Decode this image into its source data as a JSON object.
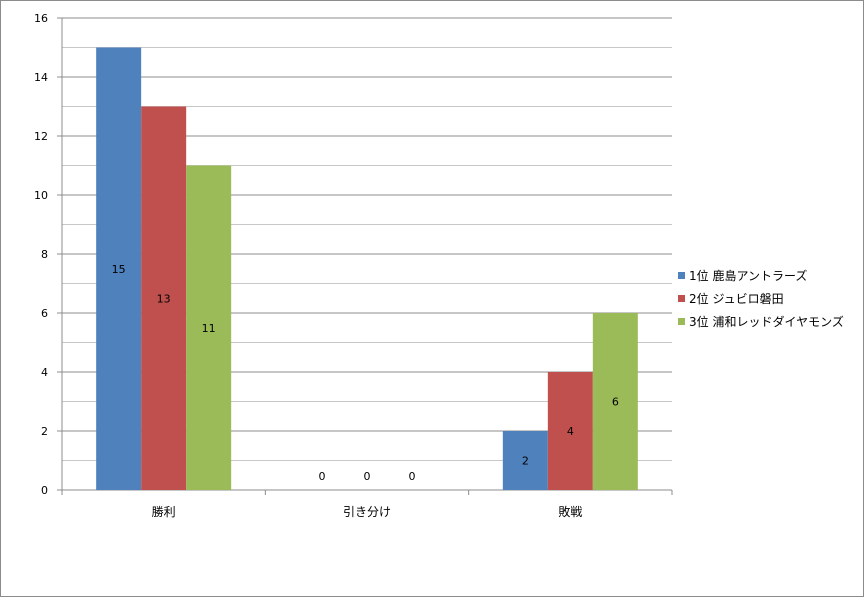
{
  "chart_data": {
    "type": "bar",
    "title": "",
    "xlabel": "",
    "ylabel": "",
    "categories": [
      "勝利",
      "引き分け",
      "敗戦"
    ],
    "series": [
      {
        "name": "1位  鹿島アントラーズ",
        "color": "#4f81bd",
        "values": [
          15,
          0,
          2
        ]
      },
      {
        "name": "2位  ジュビロ磐田",
        "color": "#c0504d",
        "values": [
          13,
          0,
          4
        ]
      },
      {
        "name": "3位  浦和レッドダイヤモンズ",
        "color": "#9bbb59",
        "values": [
          11,
          0,
          6
        ]
      }
    ],
    "ylim": [
      0,
      16
    ],
    "yticks": [
      0,
      2,
      4,
      6,
      8,
      10,
      12,
      14,
      16
    ],
    "grid": true,
    "legend_position": "right",
    "data_labels": true
  }
}
